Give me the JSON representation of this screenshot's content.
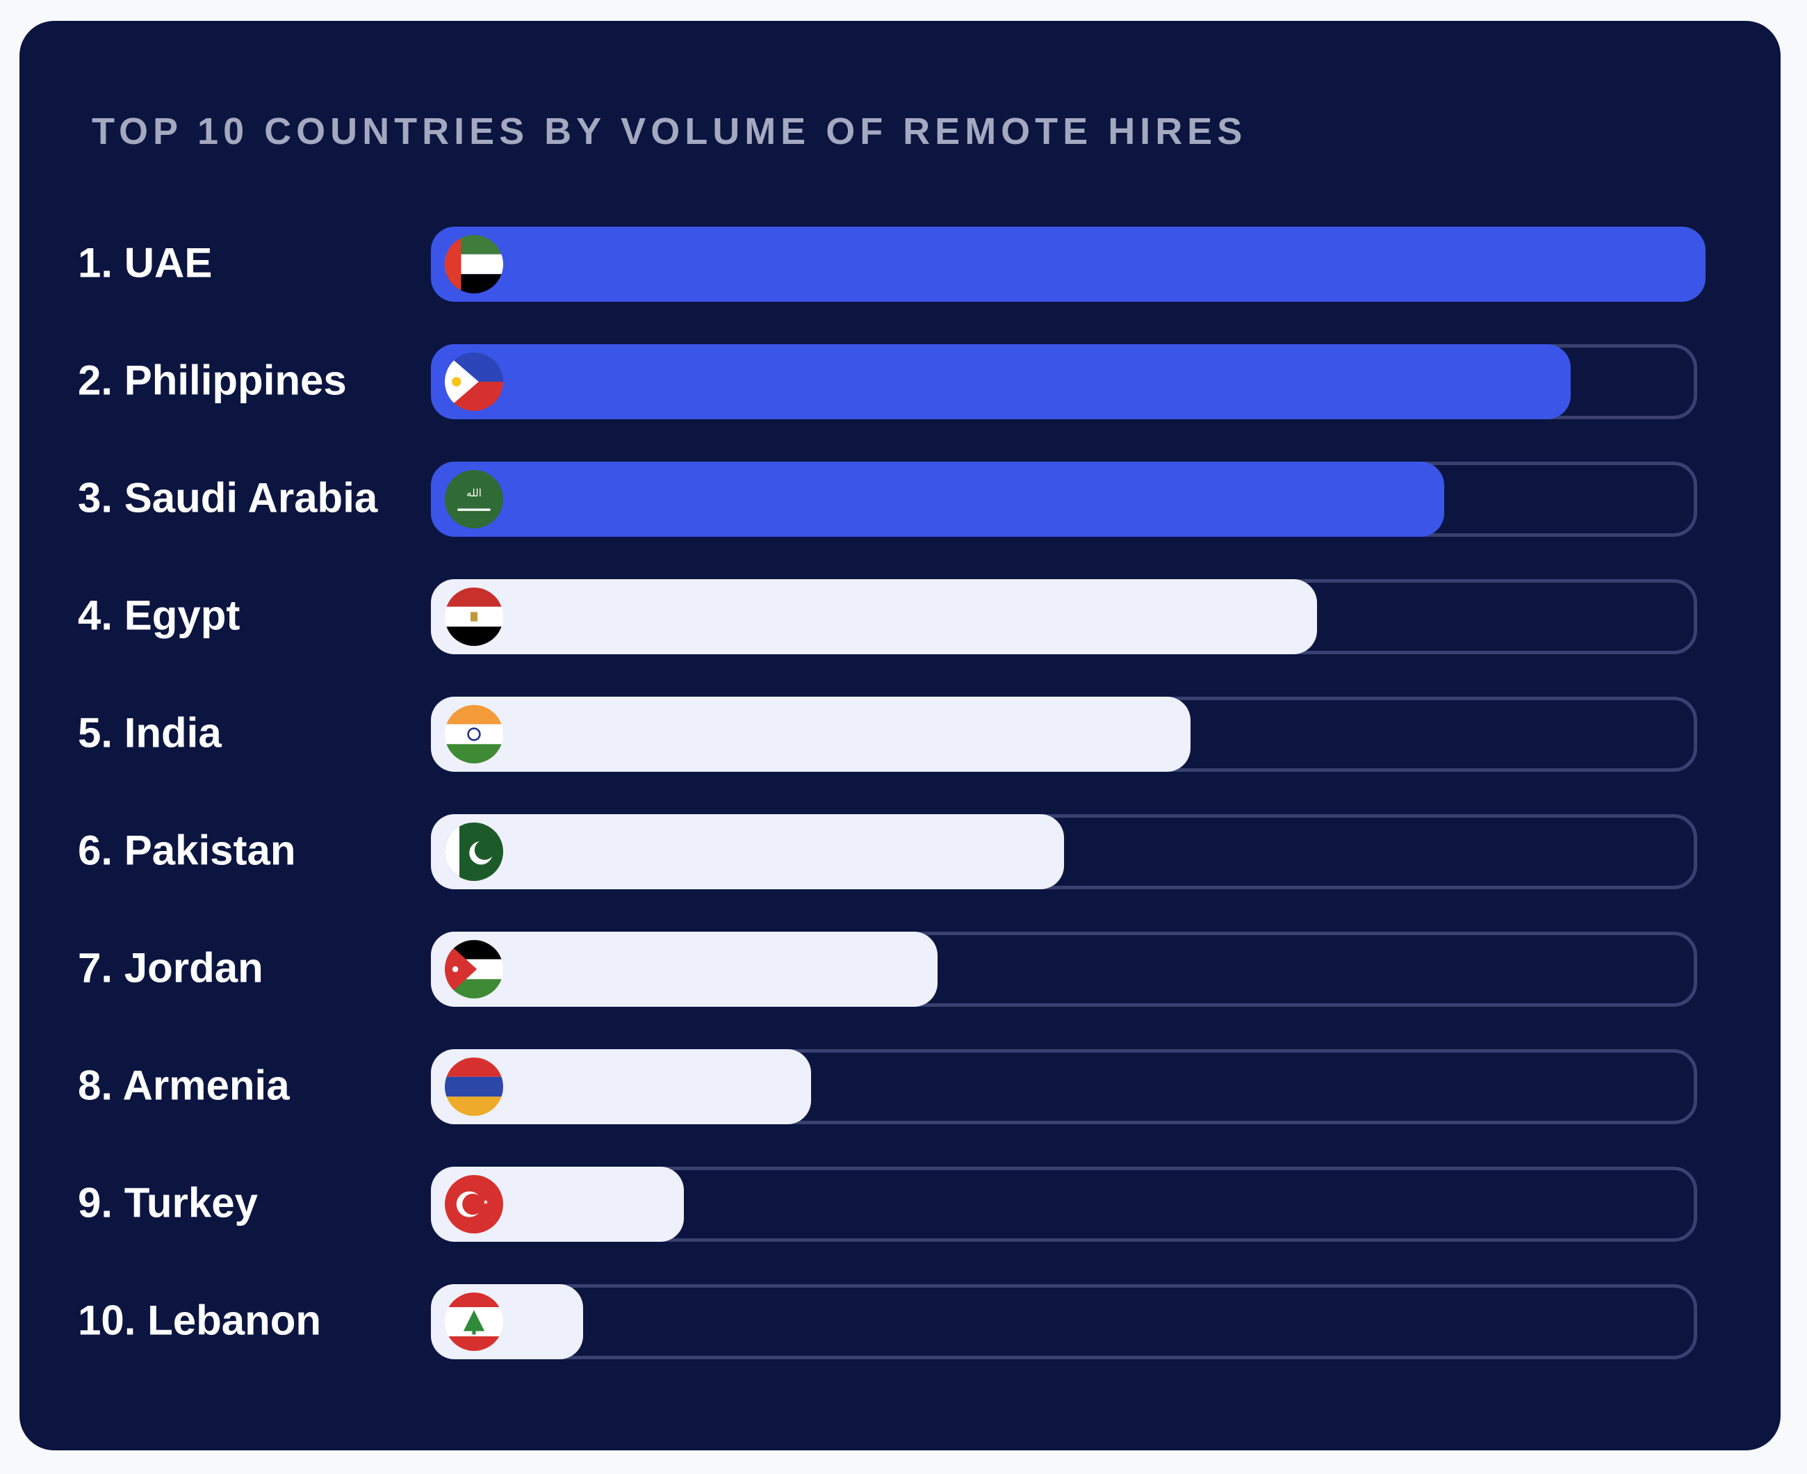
{
  "chart_data": {
    "type": "bar",
    "orientation": "horizontal",
    "title": "TOP 10 COUNTRIES BY VOLUME OF REMOTE HIRES",
    "categories": [
      "1. UAE",
      "2. Philippines",
      "3. Saudi Arabia",
      "4. Egypt",
      "5. India",
      "6. Pakistan",
      "7. Jordan",
      "8. Armenia",
      "9. Turkey",
      "10. Lebanon"
    ],
    "values_relative_percent": [
      100,
      90,
      80,
      70,
      60,
      50,
      40,
      30,
      20,
      12
    ],
    "flags": [
      "uae-flag",
      "philippines-flag",
      "saudi-arabia-flag",
      "egypt-flag",
      "india-flag",
      "pakistan-flag",
      "jordan-flag",
      "armenia-flag",
      "turkey-flag",
      "lebanon-flag"
    ],
    "highlight_count": 3,
    "colors": {
      "background": "#0b1540",
      "highlight": "#3b55e8",
      "normal": "#eef1fb",
      "track": "#3a4170",
      "title": "#a4a9c0",
      "label": "#ffffff"
    },
    "axes_shown": false,
    "grid": false
  }
}
